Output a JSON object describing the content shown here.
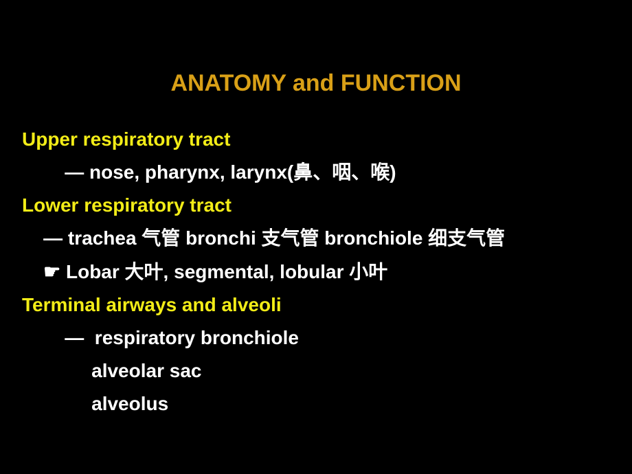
{
  "slide": {
    "title": "ANATOMY and FUNCTION",
    "title_color": "#d9a017",
    "title_fontsize": 34,
    "background_color": "#000000",
    "body_fontsize": 28,
    "colors": {
      "heading": "#f2ec17",
      "body": "#ffffff"
    },
    "lines": [
      {
        "text": "Upper respiratory tract",
        "color": "yellow",
        "indent": 0
      },
      {
        "text": "        — nose, pharynx, larynx(鼻、咽、喉)",
        "color": "white",
        "indent": 0
      },
      {
        "text": "Lower respiratory tract",
        "color": "yellow",
        "indent": 0
      },
      {
        "text": "    — trachea 气管 bronchi 支气管 bronchiole 细支气管",
        "color": "white",
        "indent": 0
      },
      {
        "text": "    ☛ Lobar 大叶, segmental, lobular 小叶",
        "color": "white",
        "indent": 0
      },
      {
        "text": "Terminal airways and alveoli",
        "color": "yellow",
        "indent": 0
      },
      {
        "text": "        —  respiratory bronchiole",
        "color": "white",
        "indent": 0
      },
      {
        "text": "             alveolar sac",
        "color": "white",
        "indent": 0
      },
      {
        "text": "             alveolus",
        "color": "white",
        "indent": 0
      }
    ]
  }
}
